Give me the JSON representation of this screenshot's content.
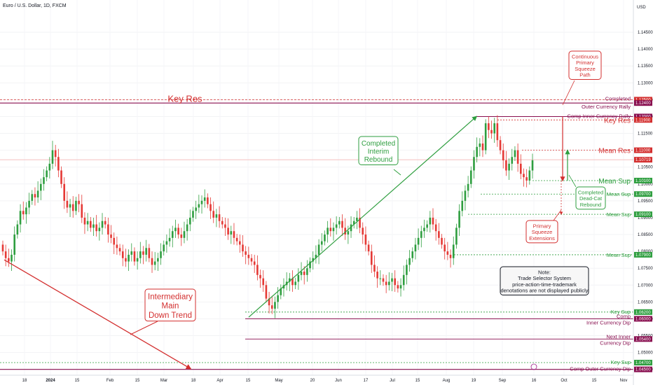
{
  "header": {
    "symbol": "Euro / U.S. Dollar, 1D, FXCM"
  },
  "axis": {
    "currency": "USD",
    "y_ticks": [
      "1.14500",
      "1.14000",
      "1.13500",
      "1.13000",
      "1.12500",
      "1.12000",
      "1.11500",
      "1.11000",
      "1.10500",
      "1.10000",
      "1.09500",
      "1.09000",
      "1.08500",
      "1.08000",
      "1.07500",
      "1.07000",
      "1.06500",
      "1.06000",
      "1.05500",
      "1.05000",
      "1.04500"
    ],
    "x_ticks": [
      "18",
      "2024",
      "15",
      "Feb",
      "15",
      "Mar",
      "18",
      "Apr",
      "15",
      "May",
      "20",
      "Jun",
      "17",
      "Jul",
      "15",
      "Aug",
      "19",
      "Sep",
      "16",
      "Oct",
      "15",
      "Nov"
    ]
  },
  "colors": {
    "red": "#d32f2f",
    "green": "#2e9e3f",
    "purple": "#880e4f",
    "up_candle": "#2e9e3f",
    "down_candle": "#e53935"
  },
  "levels": {
    "completed_outer_rally": {
      "price": "1.12400",
      "label1": "Completed",
      "label2": "Outer Currency Rally"
    },
    "upper_dotted": {
      "price": "1.12500"
    },
    "comp_inner_rally": {
      "price": "1.12000",
      "label": "Comp Inner Currency Rally"
    },
    "key_res_right": {
      "price": "1.11900",
      "label": "Key Res"
    },
    "mean_res": {
      "price": "1.11000",
      "label": "Mean Res"
    },
    "last_price": {
      "price": "1.10719"
    },
    "mean_sup_1": {
      "price": "1.10100",
      "label": "Mean Sup"
    },
    "mean_sup_2": {
      "price": "1.09700",
      "label": "Mean Sup"
    },
    "mean_sup_3": {
      "price": "1.09100",
      "label": "Mean Sup"
    },
    "mean_sup_4": {
      "price": "1.07900",
      "label": "Mean Sup"
    },
    "key_sup_1": {
      "price": "1.06200",
      "label": "Key Sup"
    },
    "comp_inner_dip": {
      "price": "1.06000",
      "label1": "Comp",
      "label2": "Inner Currency Dip"
    },
    "next_inner_dip": {
      "price": "1.05400",
      "label1": "Next Inner",
      "label2": "Currency Dip"
    },
    "key_sup_2": {
      "price": "1.04700",
      "label": "Key Sup"
    },
    "comp_outer_dip": {
      "price": "1.04500",
      "label": "Comp Outer Currency Dip"
    }
  },
  "annotations": {
    "key_res_left": "Key Res",
    "completed_interim_rebound": [
      "Completed",
      "Interim",
      "Rebound"
    ],
    "intermediary_down_trend": [
      "Intermediary",
      "Main",
      "Down Trend"
    ],
    "continuous_squeeze": [
      "Continuous",
      "Primary",
      "Squeeze",
      "Path"
    ],
    "completed_dead_cat": [
      "Completed",
      "Dead-Cat",
      "Rebound"
    ],
    "primary_squeeze_ext": [
      "Primary",
      "Squeeze",
      "Extensions"
    ],
    "note": [
      "Note:",
      "Trade Selector System",
      "price-action-time-trademark",
      "denotations are not displayed publicly"
    ]
  },
  "chart_data": {
    "type": "candlestick",
    "ylim": [
      1.0441,
      1.15
    ],
    "series_note": "Approximate EUR/USD daily closes read from the chart",
    "closes": [
      1.08,
      1.078,
      1.077,
      1.079,
      1.085,
      1.088,
      1.092,
      1.091,
      1.093,
      1.095,
      1.097,
      1.096,
      1.098,
      1.1,
      1.102,
      1.104,
      1.106,
      1.11,
      1.108,
      1.104,
      1.1,
      1.095,
      1.093,
      1.094,
      1.092,
      1.095,
      1.094,
      1.09,
      1.088,
      1.089,
      1.087,
      1.088,
      1.086,
      1.087,
      1.089,
      1.088,
      1.085,
      1.084,
      1.082,
      1.081,
      1.08,
      1.078,
      1.077,
      1.079,
      1.08,
      1.077,
      1.078,
      1.08,
      1.079,
      1.081,
      1.078,
      1.076,
      1.077,
      1.078,
      1.08,
      1.082,
      1.083,
      1.084,
      1.086,
      1.087,
      1.085,
      1.084,
      1.086,
      1.088,
      1.09,
      1.092,
      1.093,
      1.094,
      1.095,
      1.096,
      1.094,
      1.092,
      1.09,
      1.091,
      1.089,
      1.088,
      1.087,
      1.085,
      1.086,
      1.084,
      1.083,
      1.082,
      1.08,
      1.079,
      1.078,
      1.077,
      1.076,
      1.073,
      1.072,
      1.07,
      1.066,
      1.064,
      1.063,
      1.065,
      1.067,
      1.069,
      1.07,
      1.071,
      1.072,
      1.07,
      1.071,
      1.073,
      1.074,
      1.073,
      1.075,
      1.077,
      1.078,
      1.079,
      1.082,
      1.083,
      1.085,
      1.087,
      1.086,
      1.087,
      1.088,
      1.089,
      1.087,
      1.085,
      1.086,
      1.088,
      1.089,
      1.09,
      1.087,
      1.085,
      1.082,
      1.08,
      1.076,
      1.074,
      1.072,
      1.072,
      1.071,
      1.07,
      1.071,
      1.072,
      1.07,
      1.069,
      1.07,
      1.073,
      1.076,
      1.078,
      1.08,
      1.082,
      1.084,
      1.086,
      1.087,
      1.088,
      1.09,
      1.088,
      1.086,
      1.084,
      1.082,
      1.08,
      1.079,
      1.078,
      1.082,
      1.087,
      1.092,
      1.095,
      1.098,
      1.1,
      1.104,
      1.108,
      1.111,
      1.112,
      1.11,
      1.118,
      1.116,
      1.115,
      1.118,
      1.113,
      1.11,
      1.107,
      1.104,
      1.106,
      1.108,
      1.11,
      1.106,
      1.103,
      1.102,
      1.101,
      1.104,
      1.107
    ]
  }
}
